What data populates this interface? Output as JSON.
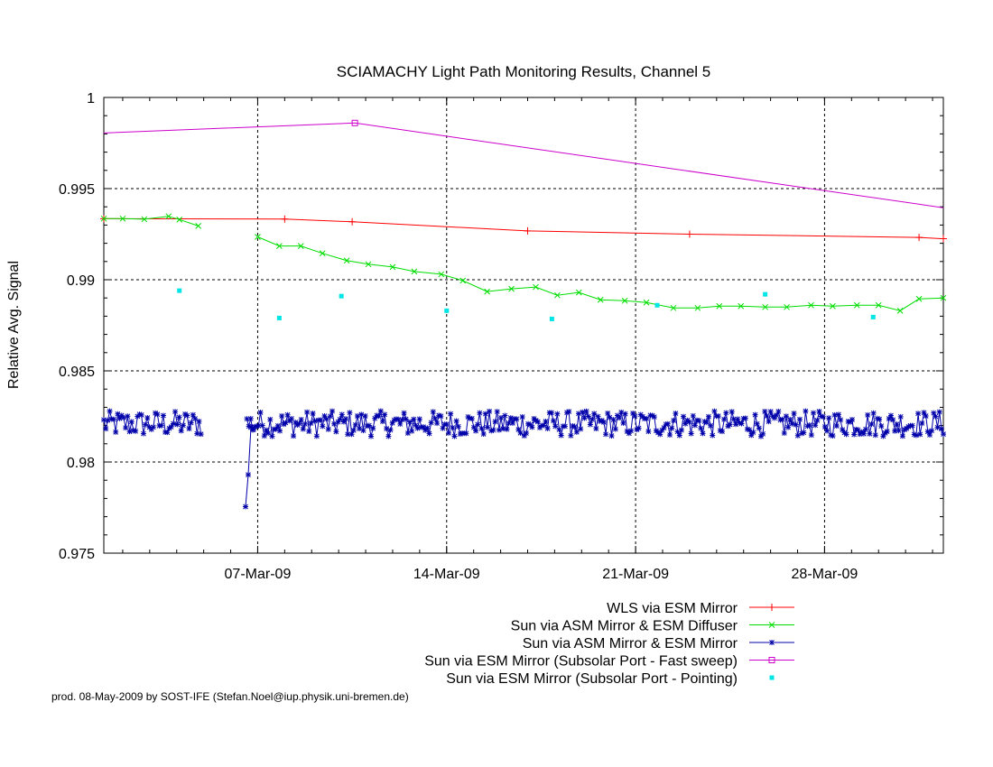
{
  "chart_data": {
    "type": "line",
    "title": "SCIAMACHY Light Path Monitoring Results, Channel 5",
    "ylabel": "Relative Avg. Signal",
    "xlabel": "",
    "x_unit": "day of March 2009",
    "xlim": [
      1.3,
      32.4
    ],
    "ylim": [
      0.975,
      1.0
    ],
    "yticks": [
      "0.975",
      "0.98",
      "0.985",
      "0.99",
      "0.995",
      "1"
    ],
    "xticks": [
      {
        "x": 7,
        "label": "07-Mar-09"
      },
      {
        "x": 14,
        "label": "14-Mar-09"
      },
      {
        "x": 21,
        "label": "21-Mar-09"
      },
      {
        "x": 28,
        "label": "28-Mar-09"
      }
    ],
    "grid": true,
    "legend_position": "bottom-right",
    "series": [
      {
        "name": "WLS via ESM Mirror",
        "color": "#ff0000",
        "style": "line-plus",
        "x": [
          1.3,
          8.0,
          10.5,
          17.0,
          23.0,
          31.5,
          32.4
        ],
        "y": [
          0.99335,
          0.99333,
          0.99318,
          0.99268,
          0.9925,
          0.99232,
          0.99225
        ]
      },
      {
        "name": "Sun via ASM Mirror & ESM Diffuser",
        "color": "#00dd00",
        "style": "line-cross",
        "segments": [
          {
            "x": [
              1.3,
              2.0,
              2.8,
              3.7,
              4.1,
              4.8
            ],
            "y": [
              0.99335,
              0.99335,
              0.99332,
              0.99348,
              0.9933,
              0.99295
            ]
          },
          {
            "x": [
              7.0,
              7.8,
              8.6,
              9.4,
              10.3,
              11.1,
              12.0,
              12.8,
              13.8,
              14.6,
              15.5,
              16.4,
              17.3,
              18.1,
              18.9,
              19.7,
              20.6,
              21.4,
              22.4,
              23.3,
              24.1,
              24.9,
              25.8,
              26.6,
              27.5,
              28.3,
              29.2,
              30.0,
              30.8,
              31.5,
              32.4
            ],
            "y": [
              0.99235,
              0.99185,
              0.99185,
              0.99145,
              0.99105,
              0.99085,
              0.9907,
              0.99045,
              0.9903,
              0.98995,
              0.98935,
              0.9895,
              0.9896,
              0.98915,
              0.9893,
              0.9889,
              0.98885,
              0.98875,
              0.98845,
              0.98845,
              0.98855,
              0.98855,
              0.9885,
              0.9885,
              0.9886,
              0.98855,
              0.9886,
              0.9886,
              0.9883,
              0.98895,
              0.989
            ]
          }
        ]
      },
      {
        "name": "Sun via ASM Mirror & ESM Mirror",
        "color": "#0000aa",
        "style": "line-star",
        "noisy": true,
        "mean": 0.9821,
        "amplitude": 0.0007,
        "segments": [
          {
            "x_start": 1.3,
            "x_end": 4.9,
            "count": 50
          },
          {
            "x_start": 6.6,
            "x_end": 32.4,
            "count": 360
          }
        ],
        "dip": {
          "x": [
            6.55,
            6.65,
            6.75,
            6.85
          ],
          "y": [
            0.97755,
            0.9793,
            0.9819,
            0.9818
          ]
        }
      },
      {
        "name": "Sun via ESM Mirror (Subsolar Port - Fast sweep)",
        "color": "#cc00cc",
        "style": "line-square",
        "x": [
          1.3,
          10.6,
          32.4
        ],
        "y": [
          0.99805,
          0.9986,
          0.99395
        ]
      },
      {
        "name": "Sun via ESM Mirror (Subsolar Port - Pointing)",
        "color": "#00e5e5",
        "style": "points",
        "x": [
          4.1,
          7.8,
          10.1,
          14.0,
          17.9,
          21.8,
          25.8,
          29.8
        ],
        "y": [
          0.9894,
          0.9879,
          0.9891,
          0.9883,
          0.98785,
          0.9886,
          0.9892,
          0.98795
        ]
      }
    ]
  },
  "footer": "prod. 08-May-2009 by SOST-IFE (Stefan.Noel@iup.physik.uni-bremen.de)"
}
